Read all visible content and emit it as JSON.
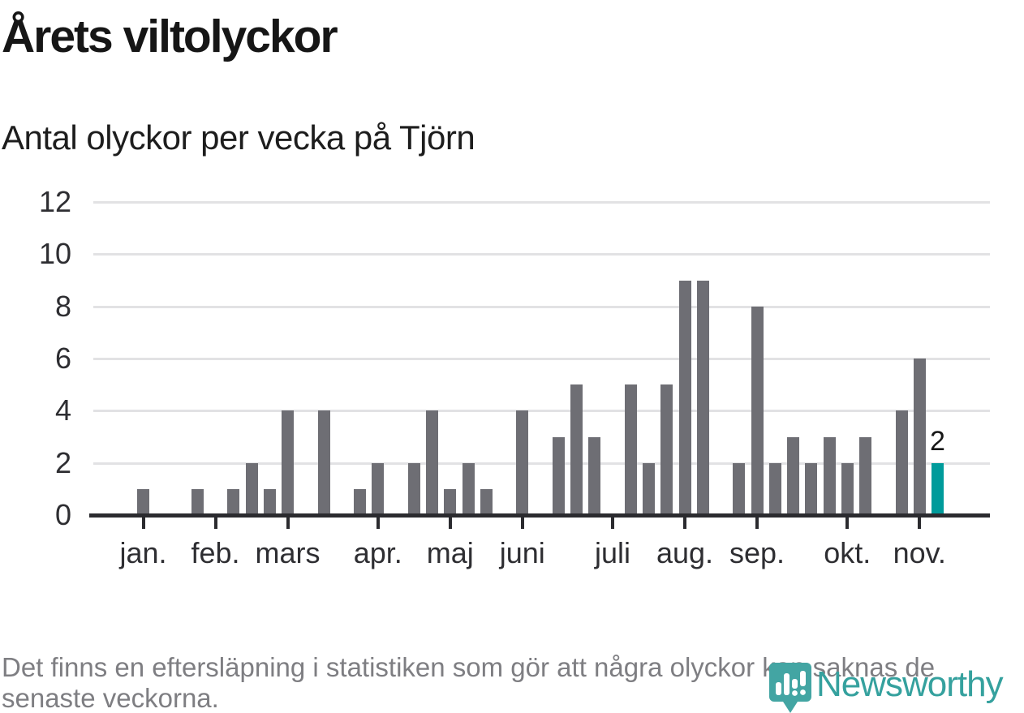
{
  "title": "Årets viltolyckor",
  "subtitle": "Antal olyckor per vecka på Tjörn",
  "footer": {
    "line1": "Det finns en eftersläpning i statistiken som gör att några olyckor kan saknas de",
    "line2": "senaste veckorna."
  },
  "brand": {
    "name": "Newsworthy"
  },
  "colors": {
    "bar": "#6e6e74",
    "accent": "#009b9b",
    "grid": "#e2e2e4",
    "axis": "#2b2b2f",
    "logo_pin": "#43a5a3",
    "wordmark": "#35a19e"
  },
  "chart_data": {
    "type": "bar",
    "title": "Årets viltolyckor",
    "subtitle": "Antal olyckor per vecka på Tjörn",
    "ylabel": "",
    "xlabel": "",
    "x_unit": "vecka",
    "weeks": [
      1,
      2,
      3,
      4,
      5,
      6,
      7,
      8,
      9,
      10,
      11,
      12,
      13,
      14,
      15,
      16,
      17,
      18,
      19,
      20,
      21,
      22,
      23,
      24,
      25,
      26,
      27,
      28,
      29,
      30,
      31,
      32,
      33,
      34,
      35,
      36,
      37,
      38,
      39,
      40,
      41,
      42,
      43,
      44,
      45
    ],
    "values": [
      1,
      0,
      0,
      1,
      0,
      1,
      2,
      1,
      4,
      0,
      4,
      0,
      1,
      2,
      0,
      2,
      4,
      1,
      2,
      1,
      0,
      4,
      0,
      3,
      5,
      3,
      0,
      5,
      2,
      5,
      9,
      9,
      0,
      2,
      8,
      2,
      3,
      2,
      3,
      2,
      3,
      0,
      4,
      6,
      2
    ],
    "highlight": {
      "index": 44,
      "label": "2"
    },
    "y_ticks": [
      0,
      2,
      4,
      6,
      8,
      10,
      12
    ],
    "ylim": [
      0,
      12
    ],
    "grid": true,
    "legend": "none",
    "month_ticks": [
      {
        "label": "jan.",
        "week_index": 0
      },
      {
        "label": "feb.",
        "week_index": 4
      },
      {
        "label": "mars",
        "week_index": 8
      },
      {
        "label": "apr.",
        "week_index": 13
      },
      {
        "label": "maj",
        "week_index": 17
      },
      {
        "label": "juni",
        "week_index": 21
      },
      {
        "label": "juli",
        "week_index": 26
      },
      {
        "label": "aug.",
        "week_index": 30
      },
      {
        "label": "sep.",
        "week_index": 34
      },
      {
        "label": "okt.",
        "week_index": 39
      },
      {
        "label": "nov.",
        "week_index": 43
      }
    ]
  }
}
